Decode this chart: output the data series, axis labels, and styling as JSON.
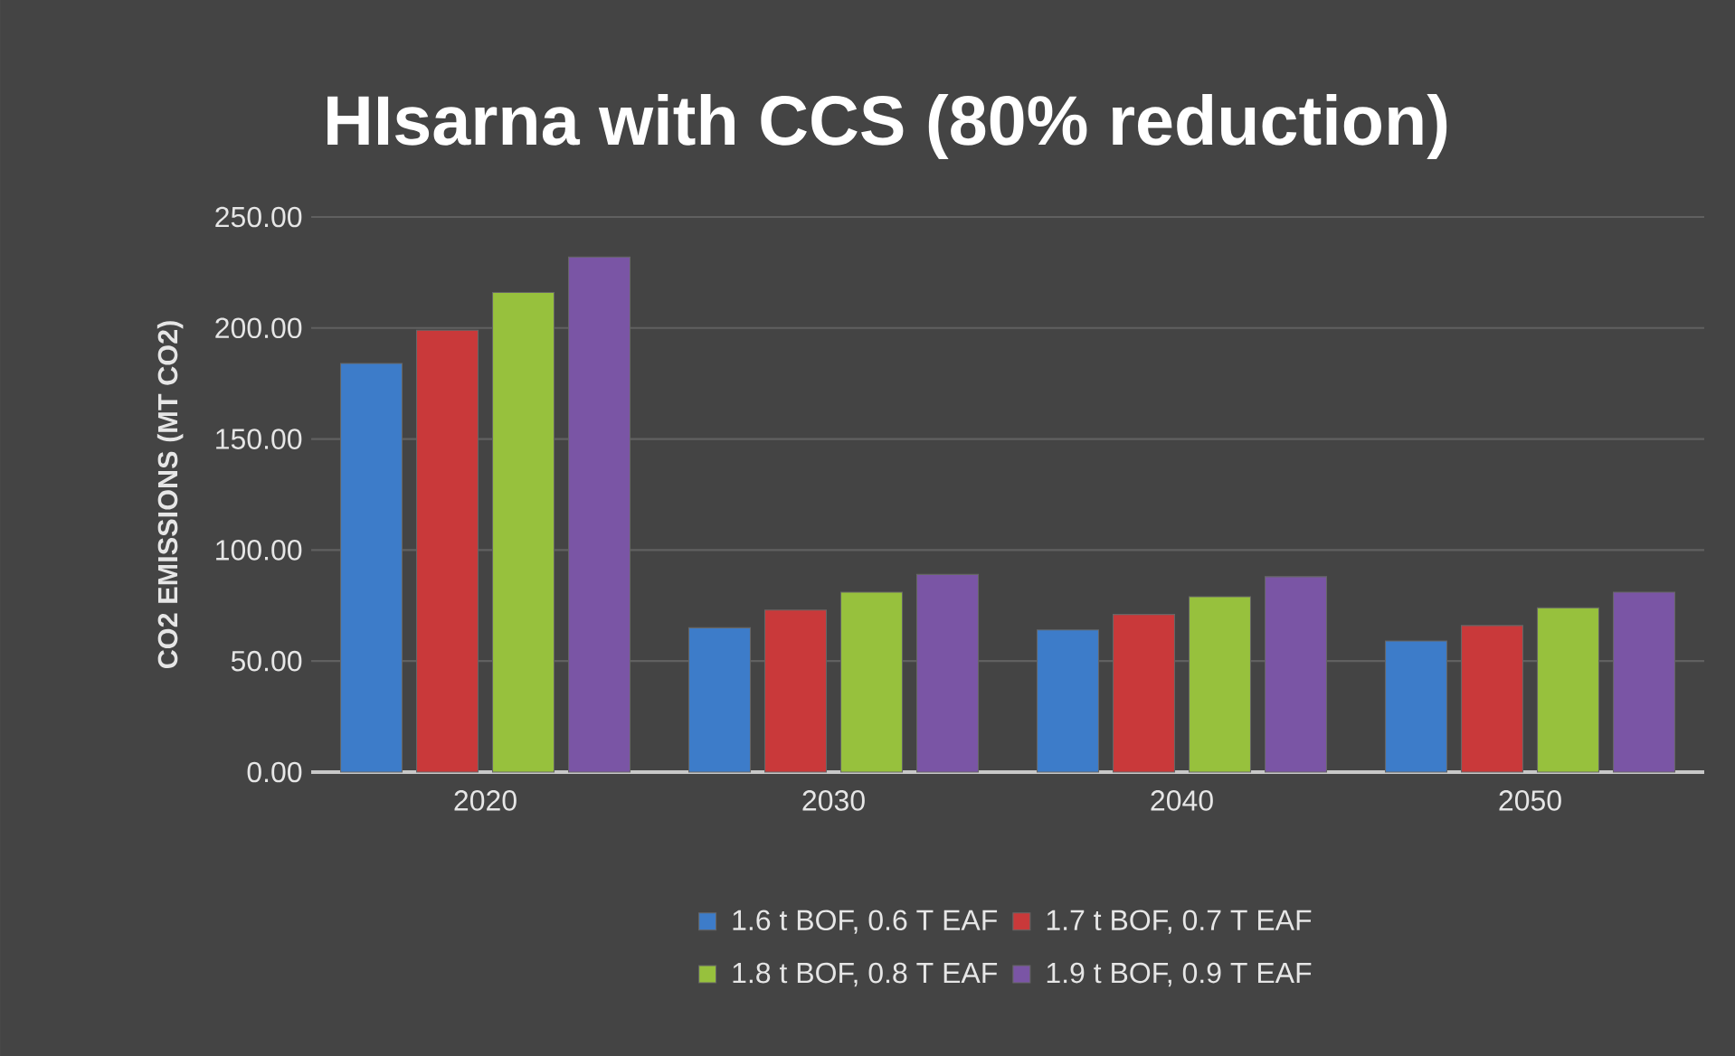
{
  "chart_data": {
    "type": "bar",
    "title": "HIsarna with CCS (80% reduction)",
    "ylabel": "CO2 EMISSIONS (MT CO2)",
    "categories": [
      "2020",
      "2030",
      "2040",
      "2050"
    ],
    "series": [
      {
        "name": "1.6 t BOF, 0.6 T EAF",
        "color": "#3d7cc9",
        "values": [
          184,
          65,
          64,
          59
        ]
      },
      {
        "name": "1.7 t BOF, 0.7 T EAF",
        "color": "#c9393a",
        "values": [
          199,
          73,
          71,
          66
        ]
      },
      {
        "name": "1.8 t BOF, 0.8 T EAF",
        "color": "#97c13d",
        "values": [
          216,
          81,
          79,
          74
        ]
      },
      {
        "name": "1.9 t BOF, 0.9 T EAF",
        "color": "#7a55a5",
        "values": [
          232,
          89,
          88,
          81
        ]
      }
    ],
    "ylim": [
      0,
      250
    ],
    "yticks": [
      {
        "value": 0,
        "label": "0.00"
      },
      {
        "value": 50,
        "label": "50.00"
      },
      {
        "value": 100,
        "label": "100.00"
      },
      {
        "value": 150,
        "label": "150.00"
      },
      {
        "value": 200,
        "label": "200.00"
      },
      {
        "value": 250,
        "label": "250.00"
      }
    ],
    "grid": "y",
    "legend": "bottom"
  }
}
